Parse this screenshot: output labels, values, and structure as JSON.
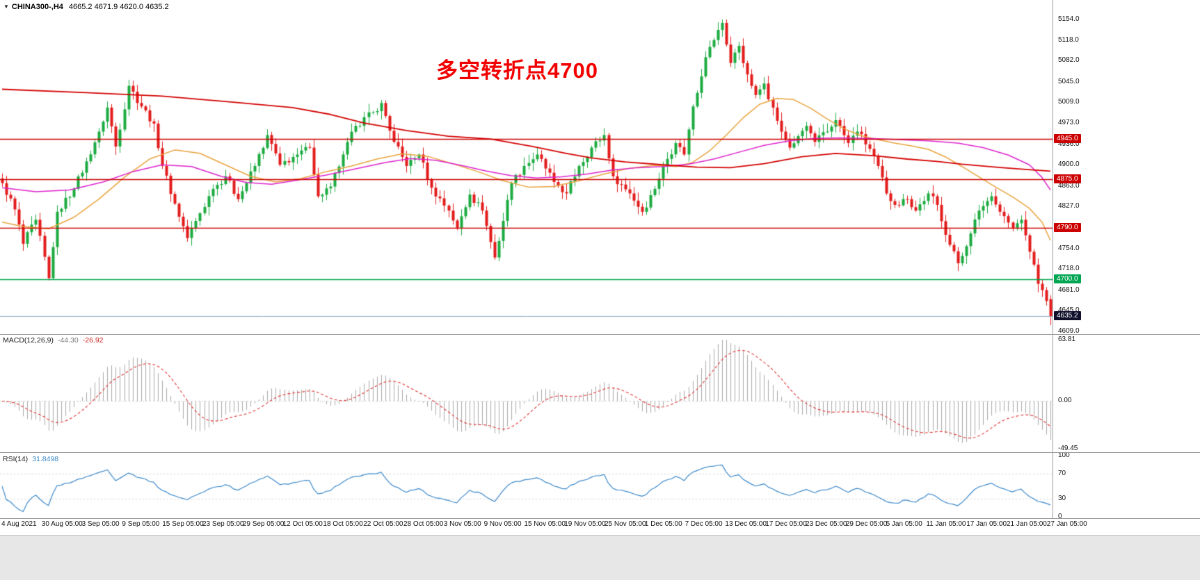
{
  "header": {
    "icon": "▼",
    "symbol": "CHINA300-,H4",
    "ohlc": "4665.2 4671.9 4620.0 4635.2"
  },
  "annotation": {
    "text": "多空转折点4700",
    "color": "#f20000"
  },
  "main_pane": {
    "y_ticks": [
      "5154.0",
      "5118.0",
      "5082.0",
      "5045.0",
      "5009.0",
      "4973.0",
      "4936.0",
      "4900.0",
      "4863.0",
      "4827.0",
      "4790.0",
      "4754.0",
      "4718.0",
      "4681.0",
      "4645.0",
      "4609.0"
    ],
    "levels": [
      {
        "price": 4945.0,
        "label": "4945.0",
        "color": "#cc0000"
      },
      {
        "price": 4875.0,
        "label": "4875.0",
        "color": "#cc0000"
      },
      {
        "price": 4790.0,
        "label": "4790.0",
        "color": "#cc0000"
      },
      {
        "price": 4700.0,
        "label": "4700.0",
        "color": "#00a651"
      }
    ],
    "bid": {
      "price": 4635.2,
      "label": "4635.2",
      "badge_color": "#10102b",
      "line_color": "#8aa8bc"
    }
  },
  "macd_pane": {
    "name": "MACD(12,26,9)",
    "value_main": "-44.30",
    "value_signal": "-26.92",
    "ticks": [
      63.81,
      0.0,
      -49.45
    ],
    "tick_labels": [
      "63.81",
      "0.00",
      "-49.45"
    ]
  },
  "rsi_pane": {
    "name": "RSI(14)",
    "value": "31.8498",
    "ticks": [
      100,
      70,
      30,
      0
    ],
    "tick_labels": [
      "100",
      "70",
      "30",
      "0"
    ],
    "levels": [
      70,
      30
    ]
  },
  "x_axis": {
    "labels": [
      "4 Aug 2021",
      "30 Aug 05:00",
      "3 Sep 05:00",
      "9 Sep 05:00",
      "15 Sep 05:00",
      "23 Sep 05:00",
      "29 Sep 05:00",
      "12 Oct 05:00",
      "18 Oct 05:00",
      "22 Oct 05:00",
      "28 Oct 05:00",
      "3 Nov 05:00",
      "9 Nov 05:00",
      "15 Nov 05:00",
      "19 Nov 05:00",
      "25 Nov 05:00",
      "1 Dec 05:00",
      "7 Dec 05:00",
      "13 Dec 05:00",
      "17 Dec 05:00",
      "23 Dec 05:00",
      "29 Dec 05:00",
      "5 Jan 05:00",
      "11 Jan 05:00",
      "17 Jan 05:00",
      "21 Jan 05:00",
      "27 Jan 05:00"
    ]
  },
  "chart_data": {
    "type": "candlestick",
    "title": "CHINA300- H4",
    "n_bars": 250,
    "price_range": [
      4609,
      5154
    ],
    "ylim_main": [
      4609,
      5154
    ],
    "ylim_macd": [
      -49.45,
      63.81
    ],
    "ylim_rsi": [
      0,
      100
    ],
    "last_bar": {
      "open": 4665.2,
      "high": 4671.9,
      "low": 4620.0,
      "close": 4635.2
    },
    "close_pivots": [
      [
        0,
        4868
      ],
      [
        3,
        4822
      ],
      [
        5,
        4762
      ],
      [
        8,
        4804
      ],
      [
        11,
        4702
      ],
      [
        13,
        4818
      ],
      [
        17,
        4858
      ],
      [
        20,
        4906
      ],
      [
        23,
        4958
      ],
      [
        25,
        5000
      ],
      [
        27,
        4932
      ],
      [
        30,
        5038
      ],
      [
        33,
        5002
      ],
      [
        36,
        4972
      ],
      [
        38,
        4898
      ],
      [
        41,
        4832
      ],
      [
        44,
        4772
      ],
      [
        46,
        4802
      ],
      [
        50,
        4858
      ],
      [
        53,
        4880
      ],
      [
        56,
        4840
      ],
      [
        60,
        4898
      ],
      [
        63,
        4952
      ],
      [
        66,
        4900
      ],
      [
        70,
        4918
      ],
      [
        73,
        4930
      ],
      [
        75,
        4845
      ],
      [
        78,
        4862
      ],
      [
        81,
        4918
      ],
      [
        84,
        4968
      ],
      [
        88,
        4992
      ],
      [
        90,
        5008
      ],
      [
        93,
        4940
      ],
      [
        96,
        4898
      ],
      [
        99,
        4918
      ],
      [
        102,
        4860
      ],
      [
        106,
        4820
      ],
      [
        108,
        4790
      ],
      [
        111,
        4848
      ],
      [
        114,
        4820
      ],
      [
        117,
        4738
      ],
      [
        119,
        4802
      ],
      [
        121,
        4868
      ],
      [
        124,
        4898
      ],
      [
        127,
        4918
      ],
      [
        131,
        4870
      ],
      [
        134,
        4850
      ],
      [
        137,
        4898
      ],
      [
        140,
        4930
      ],
      [
        143,
        4952
      ],
      [
        145,
        4880
      ],
      [
        149,
        4850
      ],
      [
        152,
        4818
      ],
      [
        155,
        4858
      ],
      [
        157,
        4898
      ],
      [
        160,
        4938
      ],
      [
        162,
        4918
      ],
      [
        164,
        5002
      ],
      [
        167,
        5088
      ],
      [
        169,
        5118
      ],
      [
        171,
        5148
      ],
      [
        173,
        5078
      ],
      [
        175,
        5108
      ],
      [
        177,
        5058
      ],
      [
        179,
        5022
      ],
      [
        181,
        5042
      ],
      [
        183,
        5000
      ],
      [
        185,
        4958
      ],
      [
        187,
        4930
      ],
      [
        189,
        4950
      ],
      [
        191,
        4968
      ],
      [
        193,
        4940
      ],
      [
        196,
        4958
      ],
      [
        198,
        4978
      ],
      [
        201,
        4938
      ],
      [
        203,
        4958
      ],
      [
        206,
        4928
      ],
      [
        208,
        4898
      ],
      [
        210,
        4850
      ],
      [
        212,
        4830
      ],
      [
        215,
        4840
      ],
      [
        217,
        4820
      ],
      [
        220,
        4850
      ],
      [
        222,
        4830
      ],
      [
        225,
        4760
      ],
      [
        227,
        4728
      ],
      [
        230,
        4780
      ],
      [
        232,
        4820
      ],
      [
        235,
        4845
      ],
      [
        237,
        4818
      ],
      [
        240,
        4790
      ],
      [
        242,
        4804
      ],
      [
        244,
        4748
      ],
      [
        246,
        4692
      ],
      [
        248,
        4662
      ],
      [
        249,
        4635.2
      ]
    ],
    "ma_long_red": [
      [
        0,
        5032
      ],
      [
        20,
        5026
      ],
      [
        38,
        5020
      ],
      [
        54,
        5010
      ],
      [
        69,
        5000
      ],
      [
        78,
        4988
      ],
      [
        86,
        4973
      ],
      [
        96,
        4960
      ],
      [
        106,
        4950
      ],
      [
        116,
        4945
      ],
      [
        126,
        4932
      ],
      [
        134,
        4920
      ],
      [
        140,
        4912
      ],
      [
        148,
        4905
      ],
      [
        157,
        4900
      ],
      [
        165,
        4896
      ],
      [
        173,
        4895
      ],
      [
        181,
        4902
      ],
      [
        190,
        4914
      ],
      [
        198,
        4920
      ],
      [
        207,
        4916
      ],
      [
        215,
        4910
      ],
      [
        222,
        4906
      ],
      [
        228,
        4901
      ],
      [
        236,
        4896
      ],
      [
        243,
        4892
      ],
      [
        249,
        4889
      ]
    ],
    "ma_mid_orange": [
      [
        0,
        4800
      ],
      [
        5,
        4792
      ],
      [
        11,
        4788
      ],
      [
        17,
        4808
      ],
      [
        23,
        4840
      ],
      [
        29,
        4878
      ],
      [
        35,
        4910
      ],
      [
        41,
        4926
      ],
      [
        47,
        4920
      ],
      [
        53,
        4900
      ],
      [
        59,
        4880
      ],
      [
        65,
        4870
      ],
      [
        71,
        4876
      ],
      [
        77,
        4888
      ],
      [
        83,
        4898
      ],
      [
        89,
        4910
      ],
      [
        95,
        4919
      ],
      [
        101,
        4915
      ],
      [
        107,
        4902
      ],
      [
        113,
        4888
      ],
      [
        119,
        4872
      ],
      [
        125,
        4861
      ],
      [
        131,
        4862
      ],
      [
        137,
        4872
      ],
      [
        143,
        4884
      ],
      [
        149,
        4894
      ],
      [
        155,
        4899
      ],
      [
        160,
        4897
      ],
      [
        164,
        4904
      ],
      [
        168,
        4924
      ],
      [
        172,
        4952
      ],
      [
        176,
        4982
      ],
      [
        180,
        5006
      ],
      [
        184,
        5016
      ],
      [
        188,
        5014
      ],
      [
        192,
        4999
      ],
      [
        196,
        4980
      ],
      [
        200,
        4963
      ],
      [
        204,
        4951
      ],
      [
        208,
        4944
      ],
      [
        212,
        4938
      ],
      [
        216,
        4933
      ],
      [
        220,
        4927
      ],
      [
        224,
        4914
      ],
      [
        228,
        4897
      ],
      [
        232,
        4879
      ],
      [
        236,
        4861
      ],
      [
        240,
        4844
      ],
      [
        244,
        4824
      ],
      [
        247,
        4800
      ],
      [
        249,
        4768
      ]
    ],
    "ma_slow_magenta": [
      [
        0,
        4860
      ],
      [
        8,
        4853
      ],
      [
        16,
        4856
      ],
      [
        24,
        4870
      ],
      [
        31,
        4888
      ],
      [
        38,
        4900
      ],
      [
        45,
        4897
      ],
      [
        52,
        4880
      ],
      [
        58,
        4869
      ],
      [
        64,
        4866
      ],
      [
        70,
        4873
      ],
      [
        77,
        4882
      ],
      [
        84,
        4893
      ],
      [
        91,
        4904
      ],
      [
        97,
        4911
      ],
      [
        103,
        4908
      ],
      [
        109,
        4899
      ],
      [
        115,
        4889
      ],
      [
        121,
        4881
      ],
      [
        127,
        4877
      ],
      [
        133,
        4879
      ],
      [
        139,
        4884
      ],
      [
        145,
        4891
      ],
      [
        151,
        4895
      ],
      [
        157,
        4897
      ],
      [
        163,
        4901
      ],
      [
        169,
        4910
      ],
      [
        175,
        4922
      ],
      [
        181,
        4934
      ],
      [
        187,
        4942
      ],
      [
        193,
        4946
      ],
      [
        199,
        4947
      ],
      [
        206,
        4946
      ],
      [
        213,
        4944
      ],
      [
        220,
        4942
      ],
      [
        227,
        4938
      ],
      [
        233,
        4930
      ],
      [
        239,
        4917
      ],
      [
        244,
        4900
      ],
      [
        247,
        4878
      ],
      [
        249,
        4856
      ]
    ],
    "indicators": {
      "macd": {
        "fast": 12,
        "slow": 26,
        "signal": 9,
        "last_main": -44.3,
        "last_signal": -26.92
      },
      "rsi": {
        "period": 14,
        "last": 31.8498
      }
    },
    "colors": {
      "up": "#1cab40",
      "down": "#e31b1b",
      "ma_long": "#d40000",
      "ma_mid": "#e8a33d",
      "ma_slow": "#dd22cc",
      "level_red": "#cc0000",
      "level_green": "#00a651",
      "bid_line": "#8aa8bc",
      "bid_badge": "#10102b",
      "macd_hist": "#a8a8a8",
      "macd_signal": "#e03030",
      "rsi_line": "#3a87c8",
      "annotation": "#f20000"
    }
  }
}
